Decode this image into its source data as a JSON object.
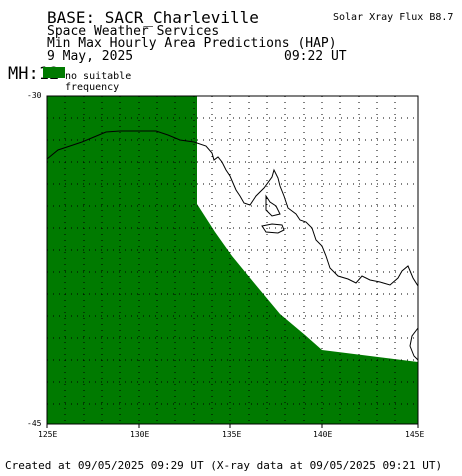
{
  "header": {
    "base": "BASE: SACR_Charleville",
    "org": "Space Weather Services",
    "product": "Min Max Hourly Area Predictions (HAP)",
    "date": "9 May, 2025",
    "time": "09:22 UT",
    "flux": "Solar Xray Flux B8.7",
    "mh": "MH:12"
  },
  "legend": {
    "line1": "no suitable",
    "line2": "frequency",
    "color": "#007a00"
  },
  "axes": {
    "lat_labels": [
      "-30",
      "-45"
    ],
    "lon_labels": [
      "125E",
      "130E",
      "135E",
      "140E",
      "145E"
    ]
  },
  "footer": "Created at 09/05/2025 09:29 UT (X-ray data at 09/05/2025 09:21 UT)",
  "colors": {
    "fill": "#007a00",
    "coast": "#000000",
    "grid": "#000000"
  }
}
